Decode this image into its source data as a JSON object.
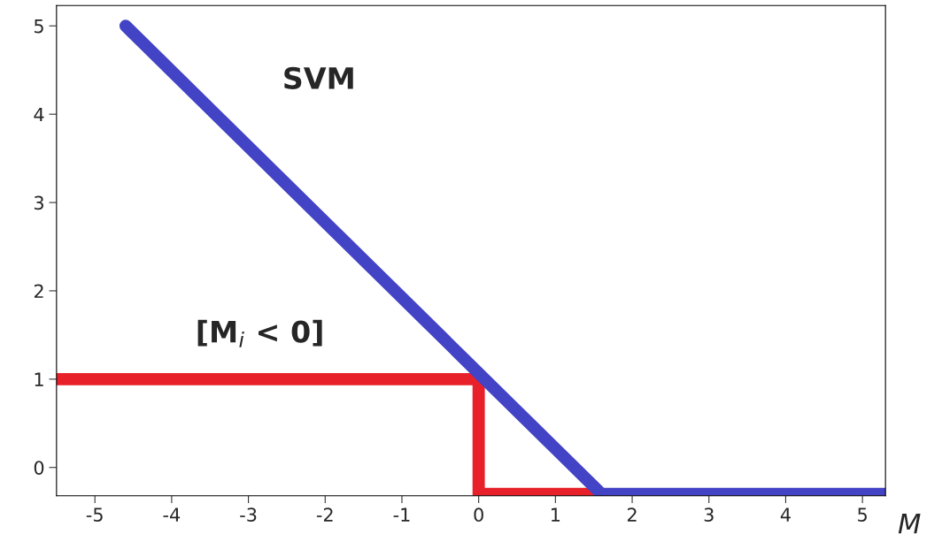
{
  "chart_data": {
    "type": "line",
    "xlabel": "M",
    "series": [
      {
        "name": "[M$_{i}$ < 0]",
        "color": "#e8202a",
        "x": [
          -5.5,
          0,
          0,
          1.6
        ],
        "values": [
          1,
          1,
          -0.3,
          -0.3
        ]
      },
      {
        "name": "SVM",
        "color": "#4343c6",
        "x": [
          -4.6,
          1.6,
          5.3
        ],
        "values": [
          5.0,
          -0.3,
          -0.3
        ]
      }
    ],
    "xlim": [
      -5.5,
      5.3
    ],
    "ylim": [
      -0.32,
      5.23
    ],
    "xticks": [
      -5,
      -4,
      -3,
      -2,
      -1,
      0,
      1,
      2,
      3,
      4,
      5
    ],
    "yticks": [
      0,
      1,
      2,
      3,
      4,
      5
    ],
    "grid": false,
    "legend": false,
    "marker": "none",
    "line_style": "solid"
  }
}
